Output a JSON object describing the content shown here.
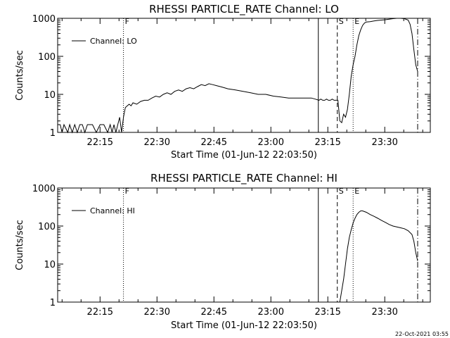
{
  "chart_data": [
    {
      "type": "line",
      "title": "RHESSI PARTICLE_RATE Channel: LO",
      "xlabel": "Start Time (01-Jun-12 22:03:50)",
      "ylabel": "Counts/sec",
      "yscale": "log",
      "ylim": [
        1,
        1000
      ],
      "xlim": [
        "22:03:50",
        "23:42:00"
      ],
      "x_ticks": [
        "22:15",
        "22:30",
        "22:45",
        "23:00",
        "23:15",
        "23:30"
      ],
      "y_ticks": [
        "1",
        "10",
        "100",
        "1000"
      ],
      "legend": {
        "label": "Channel: LO",
        "position": "top-left"
      },
      "markers": [
        {
          "time": "22:21:10",
          "label": "F",
          "style": "dotted"
        },
        {
          "time": "23:12:30",
          "label": "",
          "style": "solid"
        },
        {
          "time": "23:17:30",
          "label": "S",
          "style": "dashed"
        },
        {
          "time": "23:21:40",
          "label": "E",
          "style": "dotted"
        },
        {
          "time": "23:38:40",
          "label": "",
          "style": "dashdot"
        }
      ],
      "series": [
        {
          "name": "Channel: LO",
          "x": [
            "22:03:50",
            "22:04:30",
            "22:05:00",
            "22:05:30",
            "22:06:30",
            "22:07:00",
            "22:07:40",
            "22:08:20",
            "22:09:00",
            "22:09:40",
            "22:10:20",
            "22:11:00",
            "22:11:40",
            "22:13:00",
            "22:14:00",
            "22:15:00",
            "22:16:00",
            "22:17:00",
            "22:17:40",
            "22:18:10",
            "22:18:40",
            "22:19:10",
            "22:19:40",
            "22:20:10",
            "22:20:40",
            "22:21:10",
            "22:21:40",
            "22:22:10",
            "22:22:40",
            "22:23:10",
            "22:23:40",
            "22:24:40",
            "22:25:40",
            "22:26:40",
            "22:27:40",
            "22:28:40",
            "22:29:40",
            "22:30:40",
            "22:31:40",
            "22:32:40",
            "22:33:40",
            "22:34:40",
            "22:35:40",
            "22:36:40",
            "22:37:40",
            "22:38:40",
            "22:39:40",
            "22:40:40",
            "22:41:40",
            "22:42:40",
            "22:43:40",
            "22:44:40",
            "22:45:40",
            "22:46:40",
            "22:47:40",
            "22:48:40",
            "22:50:40",
            "22:52:40",
            "22:54:40",
            "22:56:40",
            "22:58:40",
            "23:00:40",
            "23:02:40",
            "23:04:40",
            "23:06:40",
            "23:08:40",
            "23:10:40",
            "23:11:40",
            "23:12:40",
            "23:13:10",
            "23:13:40",
            "23:14:10",
            "23:14:40",
            "23:15:10",
            "23:15:40",
            "23:16:10",
            "23:16:40",
            "23:17:10",
            "23:17:40",
            "23:18:10",
            "23:18:40",
            "23:19:10",
            "23:19:40",
            "23:20:10",
            "23:20:40",
            "23:21:10",
            "23:21:40",
            "23:22:10",
            "23:22:40",
            "23:23:10",
            "23:23:40",
            "23:24:10",
            "23:24:40",
            "23:25:10",
            "23:26:10",
            "23:27:10",
            "23:28:10",
            "23:29:10",
            "23:30:10",
            "23:31:10",
            "23:32:10",
            "23:33:10",
            "23:34:10",
            "23:35:10",
            "23:36:10",
            "23:36:40",
            "23:37:10",
            "23:37:40",
            "23:38:10",
            "23:38:40"
          ],
          "values": [
            1.6,
            1.6,
            1,
            1.6,
            1,
            1.6,
            1,
            1.6,
            1,
            1.6,
            1.6,
            1,
            1.6,
            1.6,
            1,
            1.6,
            1.6,
            1,
            1.6,
            1,
            1.6,
            1,
            1.6,
            2.5,
            1,
            2.5,
            4.5,
            5,
            5.5,
            5,
            6,
            5.5,
            6.5,
            7,
            7,
            8,
            9,
            8.5,
            10,
            11,
            10,
            12,
            13,
            12,
            14,
            15,
            14,
            16,
            18,
            17,
            19,
            18,
            17,
            16,
            15,
            14,
            13,
            12,
            11,
            10,
            10,
            9,
            8.5,
            8,
            8,
            8,
            8,
            7.5,
            7,
            7.5,
            7,
            7,
            7.5,
            7,
            7,
            7.5,
            7,
            7,
            7,
            2,
            1.8,
            3,
            2.5,
            4,
            10,
            30,
            60,
            100,
            200,
            350,
            500,
            650,
            750,
            800,
            820,
            850,
            880,
            900,
            920,
            950,
            980,
            1000,
            1000,
            980,
            900,
            700,
            400,
            150,
            60,
            40
          ]
        }
      ]
    },
    {
      "type": "line",
      "title": "RHESSI PARTICLE_RATE Channel: HI",
      "xlabel": "Start Time (01-Jun-12 22:03:50)",
      "ylabel": "Counts/sec",
      "yscale": "log",
      "ylim": [
        1,
        1000
      ],
      "xlim": [
        "22:03:50",
        "23:42:00"
      ],
      "x_ticks": [
        "22:15",
        "22:30",
        "22:45",
        "23:00",
        "23:15",
        "23:30"
      ],
      "y_ticks": [
        "1",
        "10",
        "100",
        "1000"
      ],
      "legend": {
        "label": "Channel: HI",
        "position": "top-left"
      },
      "markers": [
        {
          "time": "22:21:10",
          "label": "F",
          "style": "dotted"
        },
        {
          "time": "23:12:30",
          "label": "",
          "style": "solid"
        },
        {
          "time": "23:17:30",
          "label": "S",
          "style": "dashed"
        },
        {
          "time": "23:21:40",
          "label": "E",
          "style": "dotted"
        },
        {
          "time": "23:38:40",
          "label": "",
          "style": "dashdot"
        }
      ],
      "series": [
        {
          "name": "Channel: HI",
          "x": [
            "23:18:10",
            "23:18:40",
            "23:19:10",
            "23:19:40",
            "23:20:10",
            "23:20:40",
            "23:21:10",
            "23:21:40",
            "23:22:10",
            "23:22:40",
            "23:23:10",
            "23:23:40",
            "23:24:10",
            "23:24:40",
            "23:25:10",
            "23:26:10",
            "23:27:10",
            "23:28:10",
            "23:29:10",
            "23:30:10",
            "23:31:10",
            "23:32:10",
            "23:33:10",
            "23:34:10",
            "23:35:10",
            "23:36:10",
            "23:37:10",
            "23:37:40",
            "23:38:10",
            "23:38:40"
          ],
          "values": [
            1,
            2,
            4,
            10,
            25,
            50,
            80,
            120,
            160,
            200,
            230,
            250,
            250,
            240,
            230,
            200,
            180,
            160,
            140,
            125,
            110,
            100,
            95,
            90,
            85,
            75,
            60,
            40,
            20,
            12
          ]
        }
      ]
    }
  ],
  "timestamp": "22-Oct-2021 03:55"
}
